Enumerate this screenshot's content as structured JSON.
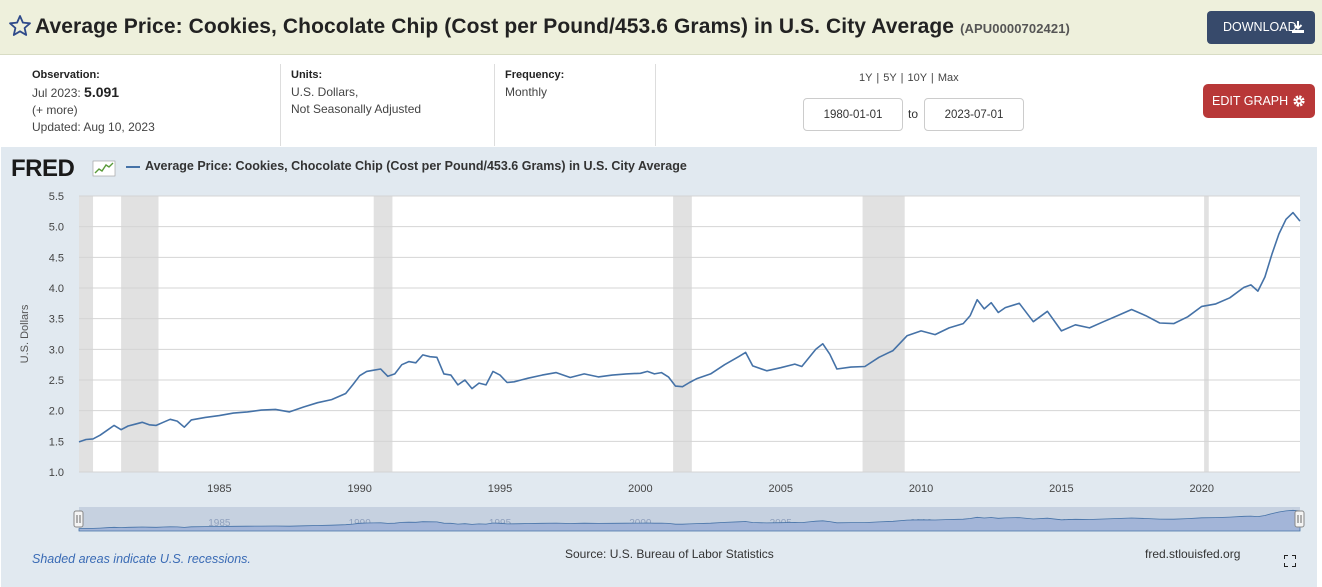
{
  "header": {
    "title": "Average Price: Cookies, Chocolate Chip (Cost per Pound/453.6 Grams) in U.S. City Average",
    "series_id": "(APU0000702421)",
    "download_label": "DOWNLOAD",
    "star_icon": "star-icon",
    "download_icon": "download-icon"
  },
  "meta": {
    "observation_label": "Observation:",
    "observation_date": "Jul 2023:",
    "observation_value": "5.091",
    "more": "(+ more)",
    "updated": "Updated: Aug 10, 2023",
    "units_label": "Units:",
    "units_line1": "U.S. Dollars,",
    "units_line2": "Not Seasonally Adjusted",
    "frequency_label": "Frequency:",
    "frequency_value": "Monthly"
  },
  "controls": {
    "ranges": [
      "1Y",
      "5Y",
      "10Y",
      "Max"
    ],
    "start_date": "1980-01-01",
    "to_label": "to",
    "end_date": "2023-07-01",
    "edit_label": "EDIT GRAPH",
    "gear_icon": "gear-icon"
  },
  "legend": {
    "logo": "FRED",
    "series_name": "Average Price: Cookies, Chocolate Chip (Cost per Pound/453.6 Grams) in U.S. City Average"
  },
  "footer": {
    "recession_note": "Shaded areas indicate U.S. recessions.",
    "source": "Source: U.S. Bureau of Labor Statistics",
    "site": "fred.stlouisfed.org"
  },
  "colors": {
    "line": "#4572a7",
    "recession": "#e1e1e1",
    "panel": "#e1e9f0",
    "navigator": "#a3b5d8",
    "download_button": "#374a6b",
    "edit_button": "#b83838"
  },
  "chart_data": {
    "type": "line",
    "title": "",
    "xlabel": "",
    "ylabel": "U.S. Dollars",
    "xlim": [
      "1980-01",
      "2023-07"
    ],
    "ylim": [
      1.0,
      5.5
    ],
    "yticks": [
      "1.0",
      "1.5",
      "2.0",
      "2.5",
      "3.0",
      "3.5",
      "4.0",
      "4.5",
      "5.0",
      "5.5"
    ],
    "xticks": [
      "1985",
      "1990",
      "1995",
      "2000",
      "2005",
      "2010",
      "2015",
      "2020"
    ],
    "grid": true,
    "legend_position": "top",
    "recessions": [
      [
        "1980-01",
        "1980-07"
      ],
      [
        "1981-07",
        "1982-11"
      ],
      [
        "1990-07",
        "1991-03"
      ],
      [
        "2001-03",
        "2001-11"
      ],
      [
        "2007-12",
        "2009-06"
      ],
      [
        "2020-02",
        "2020-04"
      ]
    ],
    "series": [
      {
        "name": "Average Price: Cookies, Chocolate Chip (Cost per Pound/453.6 Grams) in U.S. City Average",
        "points": [
          [
            "1980-01",
            1.49
          ],
          [
            "1980-04",
            1.53
          ],
          [
            "1980-07",
            1.54
          ],
          [
            "1980-10",
            1.6
          ],
          [
            "1981-01",
            1.68
          ],
          [
            "1981-04",
            1.76
          ],
          [
            "1981-07",
            1.69
          ],
          [
            "1981-10",
            1.75
          ],
          [
            "1982-01",
            1.78
          ],
          [
            "1982-04",
            1.81
          ],
          [
            "1982-07",
            1.77
          ],
          [
            "1982-10",
            1.76
          ],
          [
            "1983-01",
            1.81
          ],
          [
            "1983-04",
            1.86
          ],
          [
            "1983-07",
            1.83
          ],
          [
            "1983-10",
            1.73
          ],
          [
            "1984-01",
            1.85
          ],
          [
            "1984-07",
            1.89
          ],
          [
            "1985-01",
            1.92
          ],
          [
            "1985-07",
            1.96
          ],
          [
            "1986-01",
            1.98
          ],
          [
            "1986-07",
            2.01
          ],
          [
            "1987-01",
            2.02
          ],
          [
            "1987-07",
            1.98
          ],
          [
            "1988-01",
            2.06
          ],
          [
            "1988-07",
            2.13
          ],
          [
            "1989-01",
            2.18
          ],
          [
            "1989-07",
            2.28
          ],
          [
            "1989-10",
            2.42
          ],
          [
            "1990-01",
            2.57
          ],
          [
            "1990-04",
            2.64
          ],
          [
            "1990-07",
            2.66
          ],
          [
            "1990-10",
            2.68
          ],
          [
            "1991-01",
            2.56
          ],
          [
            "1991-04",
            2.6
          ],
          [
            "1991-07",
            2.75
          ],
          [
            "1991-10",
            2.8
          ],
          [
            "1992-01",
            2.78
          ],
          [
            "1992-04",
            2.91
          ],
          [
            "1992-07",
            2.88
          ],
          [
            "1992-10",
            2.87
          ],
          [
            "1993-01",
            2.6
          ],
          [
            "1993-04",
            2.58
          ],
          [
            "1993-07",
            2.42
          ],
          [
            "1993-10",
            2.5
          ],
          [
            "1994-01",
            2.36
          ],
          [
            "1994-04",
            2.45
          ],
          [
            "1994-07",
            2.42
          ],
          [
            "1994-10",
            2.64
          ],
          [
            "1995-01",
            2.58
          ],
          [
            "1995-04",
            2.46
          ],
          [
            "1995-07",
            2.47
          ],
          [
            "1995-10",
            2.5
          ],
          [
            "1996-01",
            2.53
          ],
          [
            "1996-07",
            2.58
          ],
          [
            "1997-01",
            2.62
          ],
          [
            "1997-07",
            2.54
          ],
          [
            "1998-01",
            2.6
          ],
          [
            "1998-07",
            2.55
          ],
          [
            "1999-01",
            2.58
          ],
          [
            "1999-07",
            2.6
          ],
          [
            "2000-01",
            2.61
          ],
          [
            "2000-04",
            2.64
          ],
          [
            "2000-07",
            2.6
          ],
          [
            "2000-10",
            2.62
          ],
          [
            "2001-01",
            2.55
          ],
          [
            "2001-04",
            2.4
          ],
          [
            "2001-07",
            2.39
          ],
          [
            "2001-10",
            2.46
          ],
          [
            "2002-01",
            2.52
          ],
          [
            "2002-07",
            2.6
          ],
          [
            "2003-01",
            2.75
          ],
          [
            "2003-07",
            2.88
          ],
          [
            "2003-10",
            2.95
          ],
          [
            "2004-01",
            2.73
          ],
          [
            "2004-07",
            2.65
          ],
          [
            "2005-01",
            2.7
          ],
          [
            "2005-07",
            2.76
          ],
          [
            "2005-10",
            2.72
          ],
          [
            "2006-01",
            2.86
          ],
          [
            "2006-04",
            3.0
          ],
          [
            "2006-07",
            3.09
          ],
          [
            "2006-10",
            2.92
          ],
          [
            "2007-01",
            2.68
          ],
          [
            "2007-07",
            2.71
          ],
          [
            "2008-01",
            2.72
          ],
          [
            "2008-07",
            2.87
          ],
          [
            "2009-01",
            2.98
          ],
          [
            "2009-07",
            3.22
          ],
          [
            "2010-01",
            3.3
          ],
          [
            "2010-07",
            3.24
          ],
          [
            "2011-01",
            3.35
          ],
          [
            "2011-07",
            3.42
          ],
          [
            "2011-10",
            3.55
          ],
          [
            "2012-01",
            3.81
          ],
          [
            "2012-04",
            3.66
          ],
          [
            "2012-07",
            3.76
          ],
          [
            "2012-10",
            3.6
          ],
          [
            "2013-01",
            3.68
          ],
          [
            "2013-07",
            3.75
          ],
          [
            "2014-01",
            3.45
          ],
          [
            "2014-07",
            3.62
          ],
          [
            "2015-01",
            3.3
          ],
          [
            "2015-07",
            3.4
          ],
          [
            "2016-01",
            3.35
          ],
          [
            "2016-07",
            3.45
          ],
          [
            "2017-01",
            3.55
          ],
          [
            "2017-07",
            3.65
          ],
          [
            "2018-01",
            3.55
          ],
          [
            "2018-07",
            3.43
          ],
          [
            "2019-01",
            3.42
          ],
          [
            "2019-07",
            3.53
          ],
          [
            "2020-01",
            3.7
          ],
          [
            "2020-07",
            3.74
          ],
          [
            "2021-01",
            3.84
          ],
          [
            "2021-07",
            4.01
          ],
          [
            "2021-10",
            4.05
          ],
          [
            "2022-01",
            3.95
          ],
          [
            "2022-04",
            4.18
          ],
          [
            "2022-07",
            4.55
          ],
          [
            "2022-10",
            4.88
          ],
          [
            "2023-01",
            5.12
          ],
          [
            "2023-04",
            5.23
          ],
          [
            "2023-07",
            5.091
          ]
        ]
      }
    ]
  }
}
